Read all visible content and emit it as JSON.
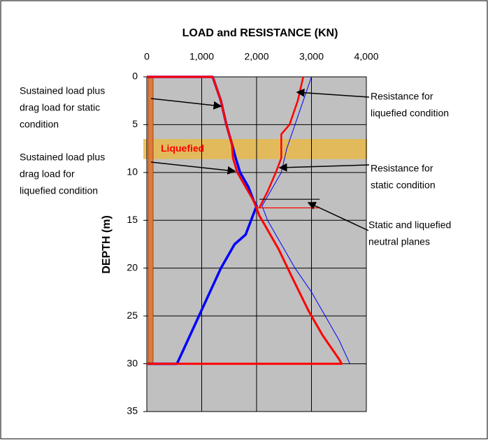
{
  "chart_data": {
    "type": "line",
    "title": "LOAD and RESISTANCE  (KN)",
    "y_label": "DEPTH  (m)",
    "xlim": [
      0,
      4000
    ],
    "xticks": [
      0,
      {
        "value": 1000,
        "label": "1,000"
      },
      {
        "value": 2000,
        "label": "2,000"
      },
      {
        "value": 3000,
        "label": "3,000"
      },
      {
        "value": 4000,
        "label": "4,000"
      }
    ],
    "ylim": [
      35,
      0
    ],
    "yticks": [
      0,
      5,
      10,
      15,
      20,
      25,
      30,
      35
    ],
    "grid": true,
    "band": {
      "label": "Liquefied",
      "color": "#e8b84a",
      "ylim": [
        6.5,
        8.6
      ]
    },
    "series": [
      {
        "color": "#ff0000",
        "width": 3,
        "x": [
          0,
          1200,
          1350,
          1450,
          1550,
          1570,
          1650,
          1800,
          1950,
          2050,
          2200,
          2400,
          2650,
          2950,
          3200,
          3500,
          3550,
          0
        ],
        "values": [
          0,
          0,
          2.5,
          5,
          7,
          8.5,
          10,
          11.5,
          13,
          14.5,
          16,
          18,
          21,
          24.5,
          27,
          29.5,
          30,
          30
        ]
      },
      {
        "color": "#0000ff",
        "width": 3.5,
        "x": [
          0,
          1200,
          1350,
          1450,
          1550,
          1620,
          1700,
          1850,
          1950,
          2000,
          1900,
          1800,
          1600,
          1350,
          1150,
          950,
          750,
          550,
          0
        ],
        "values": [
          0,
          0,
          2.5,
          5,
          7,
          8.5,
          10,
          11.5,
          13,
          13.5,
          15,
          16.5,
          17.5,
          20,
          22.5,
          25,
          27.5,
          30,
          30
        ]
      },
      {
        "color": "#ff0000",
        "width": 2.5,
        "x": [
          2850,
          2750,
          2600,
          2450,
          2450,
          2350,
          2200,
          2050
        ],
        "values": [
          0,
          2.5,
          5,
          6,
          8.5,
          10,
          12,
          13.7
        ]
      },
      {
        "color": "#0000ff",
        "width": 1,
        "x": [
          3000,
          2850,
          2700,
          2550,
          2450,
          2250,
          2100,
          2200,
          2450,
          2700,
          3000,
          3250,
          3500,
          3700
        ],
        "values": [
          0,
          2.5,
          5,
          7.5,
          10,
          12,
          13.5,
          15,
          17.5,
          20,
          22.5,
          25,
          27.5,
          30
        ]
      },
      {
        "color": "#000000",
        "width": 1.2,
        "x": [
          2050,
          3150
        ],
        "values": [
          12.8,
          12.8
        ]
      },
      {
        "color": "#ff0000",
        "width": 1.2,
        "x": [
          2000,
          3150
        ],
        "values": [
          13.7,
          13.7
        ]
      }
    ],
    "annotations": [
      [
        "Sustained load plus",
        "drag load for static",
        "condition"
      ],
      [
        "Sustained load plus",
        "drag load for",
        "liquefied condition"
      ],
      [
        "Resistance for",
        "liquefied condition"
      ],
      [
        "Resistance for",
        "static condition"
      ],
      [
        "Static and liquefied",
        "neutral planes"
      ]
    ]
  }
}
